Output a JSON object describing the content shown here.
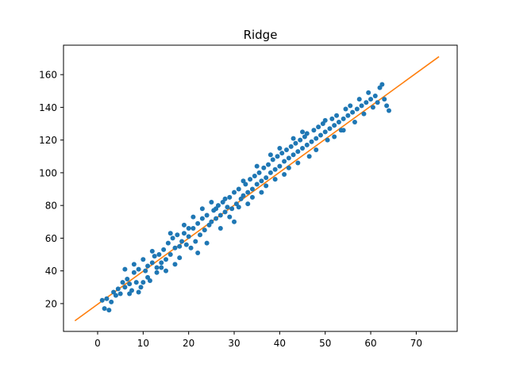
{
  "chart_data": {
    "type": "scatter",
    "title": "Ridge",
    "xlabel": "",
    "ylabel": "",
    "xlim": [
      -7.5,
      79
    ],
    "ylim": [
      3,
      178
    ],
    "x_ticks": [
      0,
      10,
      20,
      30,
      40,
      50,
      60,
      70
    ],
    "y_ticks": [
      20,
      40,
      60,
      80,
      100,
      120,
      140,
      160
    ],
    "grid": false,
    "legend": "none",
    "colors": {
      "points": "#1f77b4",
      "fit_line": "#ff7f0e"
    },
    "series": [
      {
        "type": "scatter",
        "points": [
          [
            1.0,
            22.0
          ],
          [
            1.5,
            17.0
          ],
          [
            2.0,
            23.0
          ],
          [
            2.5,
            16.0
          ],
          [
            3.0,
            21.0
          ],
          [
            3.5,
            27.0
          ],
          [
            4.0,
            25.0
          ],
          [
            4.5,
            29.0
          ],
          [
            5.0,
            26.0
          ],
          [
            5.5,
            33.0
          ],
          [
            6.0,
            30.0
          ],
          [
            6.5,
            35.0
          ],
          [
            7.0,
            32.0
          ],
          [
            7.5,
            28.0
          ],
          [
            8.0,
            39.0
          ],
          [
            8.5,
            33.0
          ],
          [
            9.0,
            27.0
          ],
          [
            9.5,
            30.0
          ],
          [
            10.0,
            47.0
          ],
          [
            10.5,
            40.0
          ],
          [
            11.0,
            43.0
          ],
          [
            11.5,
            34.0
          ],
          [
            12.0,
            45.0
          ],
          [
            12.5,
            49.0
          ],
          [
            13.0,
            42.0
          ],
          [
            13.5,
            50.0
          ],
          [
            14.0,
            45.0
          ],
          [
            14.5,
            53.0
          ],
          [
            15.0,
            47.0
          ],
          [
            15.5,
            57.0
          ],
          [
            16.0,
            50.0
          ],
          [
            16.5,
            60.0
          ],
          [
            17.0,
            54.0
          ],
          [
            17.5,
            62.0
          ],
          [
            18.0,
            55.0
          ],
          [
            18.5,
            58.0
          ],
          [
            19.0,
            63.0
          ],
          [
            19.5,
            56.0
          ],
          [
            20.0,
            61.0
          ],
          [
            20.5,
            54.0
          ],
          [
            21.0,
            66.0
          ],
          [
            21.5,
            58.0
          ],
          [
            22.0,
            69.0
          ],
          [
            22.5,
            62.0
          ],
          [
            23.0,
            72.0
          ],
          [
            23.5,
            65.0
          ],
          [
            24.0,
            74.0
          ],
          [
            24.5,
            68.0
          ],
          [
            25.0,
            70.0
          ],
          [
            25.5,
            77.0
          ],
          [
            26.0,
            72.0
          ],
          [
            26.5,
            80.0
          ],
          [
            27.0,
            74.0
          ],
          [
            27.5,
            82.0
          ],
          [
            28.0,
            76.0
          ],
          [
            28.5,
            79.0
          ],
          [
            29.0,
            85.0
          ],
          [
            29.5,
            78.0
          ],
          [
            30.0,
            88.0
          ],
          [
            30.5,
            81.0
          ],
          [
            31.0,
            90.0
          ],
          [
            31.5,
            84.0
          ],
          [
            32.0,
            86.0
          ],
          [
            32.5,
            93.0
          ],
          [
            33.0,
            88.0
          ],
          [
            33.5,
            96.0
          ],
          [
            34.0,
            90.0
          ],
          [
            34.5,
            98.0
          ],
          [
            35.0,
            93.0
          ],
          [
            35.5,
            100.0
          ],
          [
            36.0,
            95.0
          ],
          [
            36.5,
            103.0
          ],
          [
            37.0,
            97.0
          ],
          [
            37.5,
            105.0
          ],
          [
            38.0,
            100.0
          ],
          [
            38.5,
            108.0
          ],
          [
            39.0,
            102.0
          ],
          [
            39.5,
            110.0
          ],
          [
            40.0,
            104.0
          ],
          [
            40.5,
            112.0
          ],
          [
            41.0,
            107.0
          ],
          [
            41.5,
            114.0
          ],
          [
            42.0,
            109.0
          ],
          [
            42.5,
            116.0
          ],
          [
            43.0,
            111.0
          ],
          [
            43.5,
            118.0
          ],
          [
            44.0,
            113.0
          ],
          [
            44.5,
            120.0
          ],
          [
            45.0,
            115.0
          ],
          [
            45.5,
            122.0
          ],
          [
            46.0,
            117.0
          ],
          [
            46.5,
            110.0
          ],
          [
            47.0,
            119.0
          ],
          [
            47.5,
            126.0
          ],
          [
            48.0,
            121.0
          ],
          [
            48.5,
            128.0
          ],
          [
            49.0,
            123.0
          ],
          [
            49.5,
            130.0
          ],
          [
            50.0,
            125.0
          ],
          [
            50.5,
            120.0
          ],
          [
            51.0,
            127.0
          ],
          [
            51.5,
            133.0
          ],
          [
            52.0,
            129.0
          ],
          [
            52.5,
            135.0
          ],
          [
            53.0,
            131.0
          ],
          [
            53.5,
            126.0
          ],
          [
            54.0,
            133.0
          ],
          [
            54.5,
            139.0
          ],
          [
            55.0,
            135.0
          ],
          [
            55.5,
            141.0
          ],
          [
            56.0,
            137.0
          ],
          [
            56.5,
            131.0
          ],
          [
            57.0,
            139.0
          ],
          [
            57.5,
            145.0
          ],
          [
            58.0,
            141.0
          ],
          [
            58.5,
            136.0
          ],
          [
            59.0,
            143.0
          ],
          [
            59.5,
            149.0
          ],
          [
            60.0,
            145.0
          ],
          [
            60.5,
            140.0
          ],
          [
            61.0,
            147.0
          ],
          [
            61.5,
            143.0
          ],
          [
            62.0,
            152.0
          ],
          [
            62.5,
            154.0
          ],
          [
            63.0,
            145.0
          ],
          [
            63.5,
            141.0
          ],
          [
            64.0,
            138.0
          ],
          [
            26.0,
            78.0
          ],
          [
            27.0,
            66.0
          ],
          [
            28.0,
            84.0
          ],
          [
            29.0,
            73.0
          ],
          [
            30.0,
            70.0
          ],
          [
            31.0,
            79.0
          ],
          [
            32.0,
            95.0
          ],
          [
            33.0,
            81.0
          ],
          [
            34.0,
            85.0
          ],
          [
            35.0,
            104.0
          ],
          [
            36.0,
            88.0
          ],
          [
            37.0,
            92.0
          ],
          [
            38.0,
            111.0
          ],
          [
            39.0,
            96.0
          ],
          [
            40.0,
            115.0
          ],
          [
            41.0,
            99.0
          ],
          [
            42.0,
            103.0
          ],
          [
            43.0,
            121.0
          ],
          [
            44.0,
            106.0
          ],
          [
            45.0,
            125.0
          ],
          [
            46.0,
            124.0
          ],
          [
            48.0,
            114.0
          ],
          [
            50.0,
            132.0
          ],
          [
            52.0,
            122.0
          ],
          [
            54.0,
            126.0
          ],
          [
            20.0,
            66.0
          ],
          [
            18.0,
            48.0
          ],
          [
            16.0,
            63.0
          ],
          [
            14.0,
            42.0
          ],
          [
            12.0,
            52.0
          ],
          [
            22.0,
            51.0
          ],
          [
            24.0,
            57.0
          ],
          [
            23.0,
            78.0
          ],
          [
            25.0,
            82.0
          ],
          [
            21.0,
            73.0
          ],
          [
            19.0,
            68.0
          ],
          [
            17.0,
            44.0
          ],
          [
            15.0,
            40.0
          ],
          [
            13.0,
            39.0
          ],
          [
            11.0,
            36.0
          ],
          [
            9.0,
            41.0
          ],
          [
            7.0,
            26.0
          ],
          [
            6.0,
            41.0
          ],
          [
            8.0,
            44.0
          ],
          [
            10.0,
            33.0
          ]
        ]
      },
      {
        "type": "line",
        "x": [
          -5,
          75
        ],
        "y": [
          9.5,
          171.0
        ]
      }
    ]
  }
}
